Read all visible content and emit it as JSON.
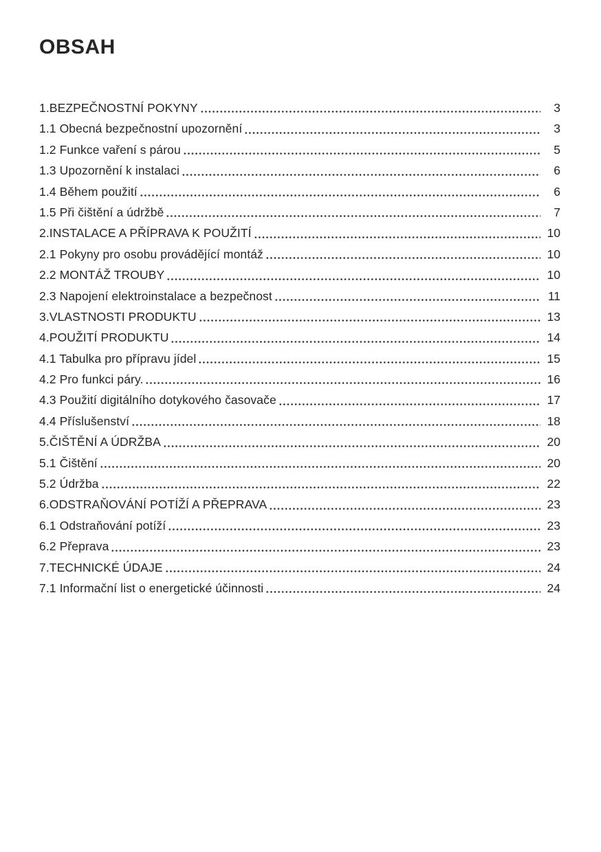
{
  "page": {
    "title": "OBSAH"
  },
  "toc": {
    "entries": [
      {
        "label": "1.BEZPEČNOSTNÍ POKYNY",
        "page": "3"
      },
      {
        "label": "1.1 Obecná bezpečnostní upozornění",
        "page": "3"
      },
      {
        "label": "1.2 Funkce vaření s párou",
        "page": "5"
      },
      {
        "label": "1.3 Upozornění k instalaci",
        "page": "6"
      },
      {
        "label": "1.4 Během použití",
        "page": "6"
      },
      {
        "label": "1.5 Při čištění a údržbě",
        "page": "7"
      },
      {
        "label": "2.INSTALACE A PŘÍPRAVA K POUŽITÍ",
        "page": "10"
      },
      {
        "label": "2.1 Pokyny pro osobu provádějící montáž",
        "page": "10"
      },
      {
        "label": "2.2 MONTÁŽ TROUBY",
        "page": "10"
      },
      {
        "label": "2.3 Napojení elektroinstalace a bezpečnost",
        "page": "11"
      },
      {
        "label": "3.VLASTNOSTI PRODUKTU",
        "page": "13"
      },
      {
        "label": "4.POUŽITÍ PRODUKTU",
        "page": "14"
      },
      {
        "label": "4.1 Tabulka pro přípravu jídel",
        "page": "15"
      },
      {
        "label": "4.2 Pro funkci páry.",
        "page": "16"
      },
      {
        "label": "4.3 Použití digitálního dotykového časovače",
        "page": "17"
      },
      {
        "label": "4.4 Příslušenství",
        "page": "18"
      },
      {
        "label": "5.ČIŠTĚNÍ A ÚDRŽBA",
        "page": "20"
      },
      {
        "label": "5.1 Čištění",
        "page": "20"
      },
      {
        "label": "5.2 Údržba",
        "page": "22"
      },
      {
        "label": "6.ODSTRAŇOVÁNÍ POTÍŽÍ A PŘEPRAVA",
        "page": "23"
      },
      {
        "label": "6.1 Odstraňování potíží",
        "page": "23"
      },
      {
        "label": "6.2 Přeprava",
        "page": "23"
      },
      {
        "label": "7.TECHNICKÉ ÚDAJE",
        "page": "24"
      },
      {
        "label": "7.1 Informační list o energetické účinnosti",
        "page": "24"
      }
    ]
  }
}
